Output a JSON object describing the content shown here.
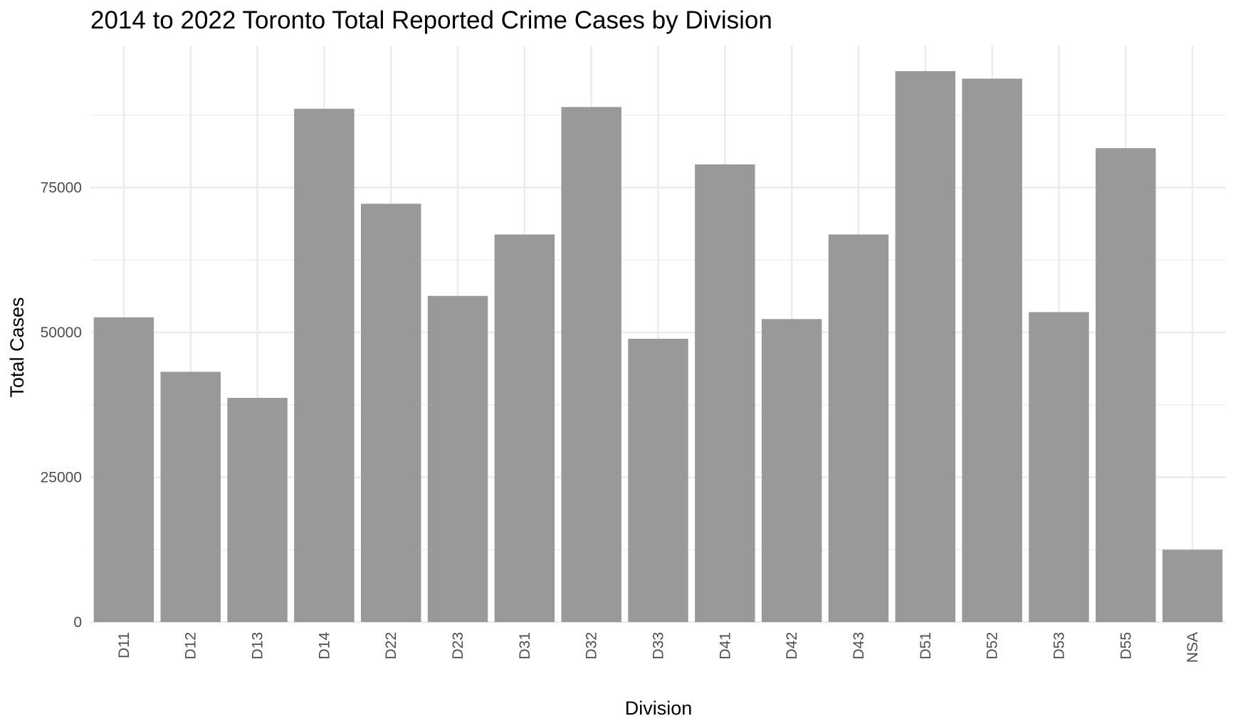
{
  "chart_data": {
    "type": "bar",
    "title": "2014 to 2022 Toronto Total Reported Crime Cases by Division",
    "xlabel": "Division",
    "ylabel": "Total Cases",
    "categories": [
      "D11",
      "D12",
      "D13",
      "D14",
      "D22",
      "D23",
      "D31",
      "D32",
      "D33",
      "D41",
      "D42",
      "D43",
      "D51",
      "D52",
      "D53",
      "D55",
      "NSA"
    ],
    "values": [
      52600,
      43200,
      38700,
      88600,
      72200,
      56300,
      66900,
      88900,
      48900,
      79000,
      52300,
      66900,
      95100,
      93800,
      53500,
      81800,
      12500
    ],
    "ylim": [
      0,
      100000
    ],
    "yticks": [
      0,
      25000,
      50000,
      75000
    ],
    "ytick_labels": [
      "0",
      "25000",
      "50000",
      "75000"
    ],
    "grid": true,
    "bar_color": "#999999",
    "grid_color": "#ebebeb",
    "background": "#ffffff"
  }
}
